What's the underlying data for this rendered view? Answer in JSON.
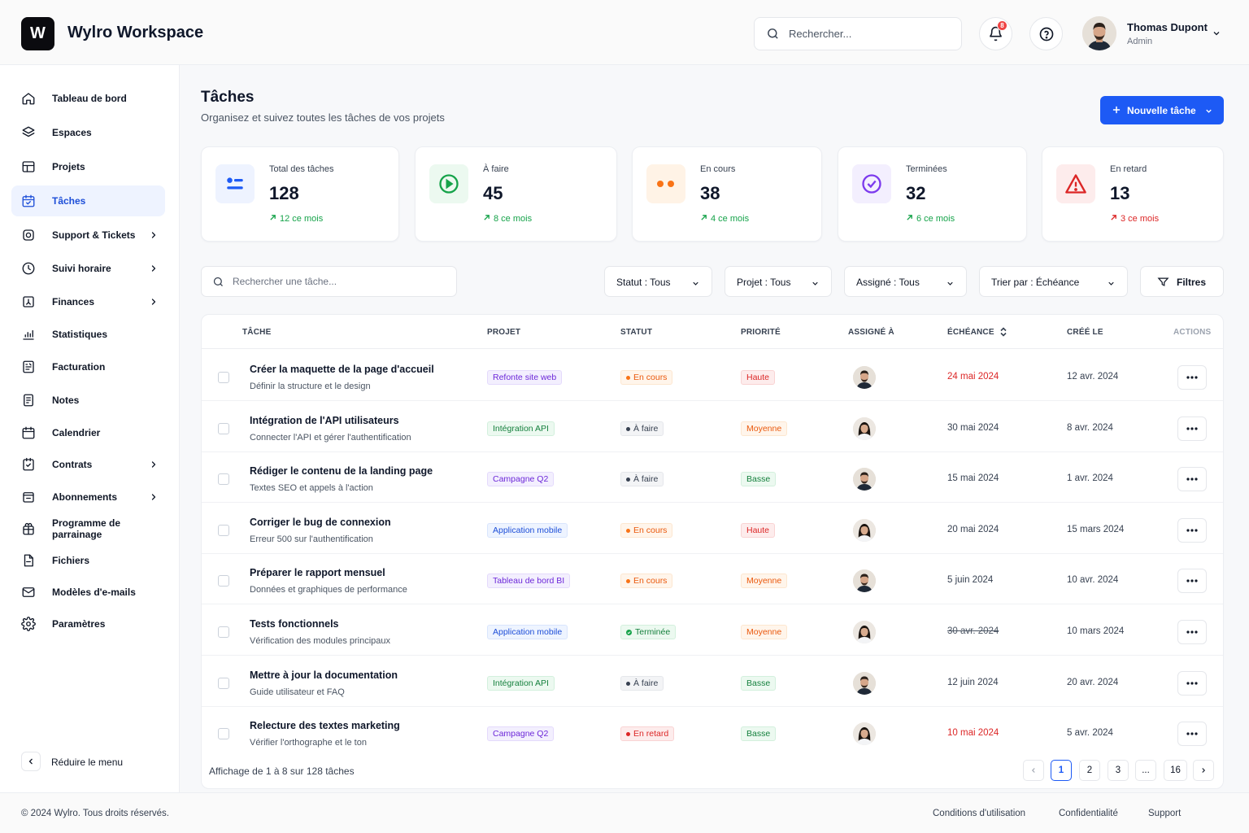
{
  "app": {
    "logo_letter": "W",
    "title": "Wylro Workspace"
  },
  "header": {
    "search_placeholder": "Rechercher...",
    "notification_count": "8",
    "user": {
      "name": "Thomas Dupont",
      "role": "Admin"
    }
  },
  "sidebar": {
    "items": [
      {
        "id": "dashboard",
        "label": "Tableau de bord",
        "icon": "home-icon",
        "chevron": false,
        "active": false
      },
      {
        "id": "spaces",
        "label": "Espaces",
        "icon": "layers-icon",
        "chevron": false,
        "active": false
      },
      {
        "id": "projects",
        "label": "Projets",
        "icon": "layout-icon",
        "chevron": false,
        "active": false
      },
      {
        "id": "tasks",
        "label": "Tâches",
        "icon": "calendar-check-icon",
        "chevron": false,
        "active": true
      },
      {
        "id": "support",
        "label": "Support & Tickets",
        "icon": "support-icon",
        "chevron": true,
        "active": false
      },
      {
        "id": "time",
        "label": "Suivi horaire",
        "icon": "clock-icon",
        "chevron": true,
        "active": false
      },
      {
        "id": "finances",
        "label": "Finances",
        "icon": "finance-icon",
        "chevron": true,
        "active": false
      },
      {
        "id": "stats",
        "label": "Statistiques",
        "icon": "bar-chart-icon",
        "chevron": false,
        "active": false
      },
      {
        "id": "billing",
        "label": "Facturation",
        "icon": "invoice-icon",
        "chevron": false,
        "active": false
      },
      {
        "id": "notes",
        "label": "Notes",
        "icon": "note-icon",
        "chevron": false,
        "active": false
      },
      {
        "id": "calendar",
        "label": "Calendrier",
        "icon": "calendar-icon",
        "chevron": false,
        "active": false
      },
      {
        "id": "contracts",
        "label": "Contrats",
        "icon": "contract-icon",
        "chevron": true,
        "active": false
      },
      {
        "id": "subscriptions",
        "label": "Abonnements",
        "icon": "subscription-icon",
        "chevron": true,
        "active": false
      },
      {
        "id": "referral",
        "label": "Programme de parrainage",
        "icon": "gift-icon",
        "chevron": false,
        "active": false
      },
      {
        "id": "files",
        "label": "Fichiers",
        "icon": "file-icon",
        "chevron": false,
        "active": false
      },
      {
        "id": "email-templates",
        "label": "Modèles d'e-mails",
        "icon": "mail-icon",
        "chevron": false,
        "active": false
      },
      {
        "id": "settings",
        "label": "Paramètres",
        "icon": "gear-icon",
        "chevron": false,
        "active": false
      }
    ],
    "collapse_label": "Réduire le menu"
  },
  "page": {
    "title": "Tâches",
    "subtitle": "Organisez et suivez toutes les tâches de vos projets",
    "new_task_label": "Nouvelle tâche"
  },
  "stats": [
    {
      "label": "Total des tâches",
      "value": "128",
      "trend": "12 ce mois",
      "trend_color": "green",
      "icon": "list-icon",
      "bg": "#eef3ff",
      "fg": "#1d5af5"
    },
    {
      "label": "À faire",
      "value": "45",
      "trend": "8 ce mois",
      "trend_color": "green",
      "icon": "play-circle-icon",
      "bg": "#ecf9f0",
      "fg": "#16a34a"
    },
    {
      "label": "En cours",
      "value": "38",
      "trend": "4 ce mois",
      "trend_color": "green",
      "icon": "dots-icon",
      "bg": "#fff3e6",
      "fg": "#f97316"
    },
    {
      "label": "Terminées",
      "value": "32",
      "trend": "6 ce mois",
      "trend_color": "green",
      "icon": "check-circle-icon",
      "bg": "#f3effe",
      "fg": "#7c3aed"
    },
    {
      "label": "En retard",
      "value": "13",
      "trend": "3 ce mois",
      "trend_color": "red",
      "icon": "warning-icon",
      "bg": "#fdecec",
      "fg": "#dc2626"
    }
  ],
  "filters": {
    "search_placeholder": "Rechercher une tâche...",
    "status": "Statut : Tous",
    "project": "Projet : Tous",
    "assignee": "Assigné : Tous",
    "sort": "Trier par : Échéance",
    "filters_label": "Filtres"
  },
  "table": {
    "columns": {
      "task": "TÂCHE",
      "project": "PROJET",
      "status": "STATUT",
      "priority": "PRIORITÉ",
      "assignee": "ASSIGNÉ À",
      "due": "ÉCHÉANCE",
      "created": "CRÉÉ LE",
      "actions": "ACTIONS"
    },
    "rows": [
      {
        "name": "Créer la maquette de la page d'accueil",
        "desc": "Définir la structure et le design",
        "project": "Refonte site web",
        "project_color": "purple",
        "status": "En cours",
        "status_type": "progress",
        "priority": "Haute",
        "priority_type": "high",
        "assignee": "man",
        "due": "24 mai 2024",
        "due_style": "red",
        "created": "12 avr. 2024"
      },
      {
        "name": "Intégration de l'API utilisateurs",
        "desc": "Connecter l'API et gérer l'authentification",
        "project": "Intégration API",
        "project_color": "green",
        "status": "À faire",
        "status_type": "todo",
        "priority": "Moyenne",
        "priority_type": "medium",
        "assignee": "woman",
        "due": "30 mai 2024",
        "due_style": "normal",
        "created": "8 avr. 2024"
      },
      {
        "name": "Rédiger le contenu de la landing page",
        "desc": "Textes SEO et appels à l'action",
        "project": "Campagne Q2",
        "project_color": "purple",
        "status": "À faire",
        "status_type": "todo",
        "priority": "Basse",
        "priority_type": "low",
        "assignee": "man",
        "due": "15 mai 2024",
        "due_style": "normal",
        "created": "1 avr. 2024"
      },
      {
        "name": "Corriger le bug de connexion",
        "desc": "Erreur 500 sur l'authentification",
        "project": "Application mobile",
        "project_color": "blue",
        "status": "En cours",
        "status_type": "progress",
        "priority": "Haute",
        "priority_type": "high",
        "assignee": "woman",
        "due": "20 mai 2024",
        "due_style": "normal",
        "created": "15 mars 2024"
      },
      {
        "name": "Préparer le rapport mensuel",
        "desc": "Données et graphiques de performance",
        "project": "Tableau de bord BI",
        "project_color": "purple",
        "status": "En cours",
        "status_type": "progress",
        "priority": "Moyenne",
        "priority_type": "medium",
        "assignee": "man",
        "due": "5 juin 2024",
        "due_style": "normal",
        "created": "10 avr. 2024"
      },
      {
        "name": "Tests fonctionnels",
        "desc": "Vérification des modules principaux",
        "project": "Application mobile",
        "project_color": "blue",
        "status": "Terminée",
        "status_type": "done",
        "priority": "Moyenne",
        "priority_type": "medium",
        "assignee": "woman",
        "due": "30 avr. 2024",
        "due_style": "strike",
        "created": "10 mars 2024"
      },
      {
        "name": "Mettre à jour la documentation",
        "desc": "Guide utilisateur et FAQ",
        "project": "Intégration API",
        "project_color": "green",
        "status": "À faire",
        "status_type": "todo",
        "priority": "Basse",
        "priority_type": "low",
        "assignee": "man",
        "due": "12 juin 2024",
        "due_style": "normal",
        "created": "20 avr. 2024"
      },
      {
        "name": "Relecture des textes marketing",
        "desc": "Vérifier l'orthographe et le ton",
        "project": "Campagne Q2",
        "project_color": "purple",
        "status": "En retard",
        "status_type": "late",
        "priority": "Basse",
        "priority_type": "low",
        "assignee": "woman",
        "due": "10 mai 2024",
        "due_style": "red",
        "created": "5 avr. 2024"
      }
    ]
  },
  "pagination": {
    "summary": "Affichage de 1 à 8 sur 128 tâches",
    "pages": [
      "1",
      "2",
      "3",
      "...",
      "16"
    ],
    "current": "1"
  },
  "footer": {
    "copyright": "© 2024 Wylro. Tous droits réservés.",
    "links": [
      "Conditions d'utilisation",
      "Confidentialité",
      "Support"
    ]
  }
}
